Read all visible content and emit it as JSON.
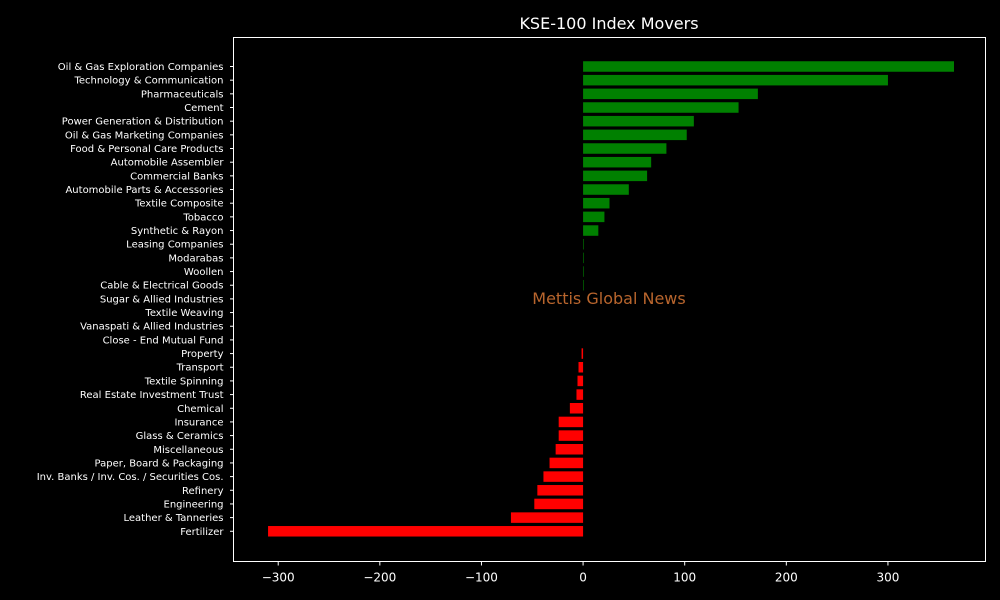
{
  "chart_data": {
    "type": "bar",
    "orientation": "horizontal",
    "title": "KSE-100 Index Movers",
    "watermark": "Mettis Global News",
    "xlim": [
      -344,
      396
    ],
    "xticks": [
      -300,
      -200,
      -100,
      0,
      100,
      200,
      300
    ],
    "xtick_labels": [
      "−300",
      "−200",
      "−100",
      "0",
      "100",
      "200",
      "300"
    ],
    "positive_color": "#008000",
    "negative_color": "#ff0000",
    "categories": [
      "Oil & Gas Exploration Companies",
      "Technology & Communication",
      "Pharmaceuticals",
      "Cement",
      "Power Generation & Distribution",
      "Oil & Gas Marketing Companies",
      "Food & Personal Care Products",
      "Automobile Assembler",
      "Commercial Banks",
      "Automobile Parts & Accessories",
      "Textile Composite",
      "Tobacco",
      "Synthetic & Rayon",
      "Leasing Companies",
      "Modarabas",
      "Woollen",
      "Cable & Electrical Goods",
      "Sugar & Allied Industries",
      "Textile Weaving",
      "Vanaspati & Allied Industries",
      "Close - End Mutual Fund",
      "Property",
      "Transport",
      "Textile Spinning",
      "Real Estate Investment Trust",
      "Chemical",
      "Insurance",
      "Glass & Ceramics",
      "Miscellaneous",
      "Paper, Board & Packaging",
      "Inv. Banks / Inv. Cos. / Securities Cos.",
      "Refinery",
      "Engineering",
      "Leather & Tanneries",
      "Fertilizer"
    ],
    "values": [
      365,
      300,
      172,
      153,
      109,
      102,
      82,
      67,
      63,
      45,
      26,
      21,
      15,
      0.4,
      0.3,
      0.2,
      0.1,
      0,
      0,
      0,
      0,
      -1.5,
      -4.5,
      -5.5,
      -6.5,
      -13,
      -24,
      -24,
      -27,
      -33,
      -39,
      -45,
      -48,
      -71,
      -310
    ]
  }
}
